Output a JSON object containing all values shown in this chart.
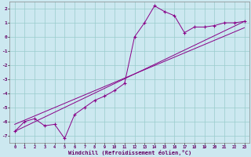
{
  "xlabel": "Windchill (Refroidissement éolien,°C)",
  "bg_color": "#cce8f0",
  "line_color": "#880088",
  "grid_color": "#99cccc",
  "x_min": -0.5,
  "x_max": 23.5,
  "y_min": -7.5,
  "y_max": 2.5,
  "yticks": [
    -7,
    -6,
    -5,
    -4,
    -3,
    -2,
    -1,
    0,
    1,
    2
  ],
  "xticks": [
    0,
    1,
    2,
    3,
    4,
    5,
    6,
    7,
    8,
    9,
    10,
    11,
    12,
    13,
    14,
    15,
    16,
    17,
    18,
    19,
    20,
    21,
    22,
    23
  ],
  "line1_x": [
    0,
    1,
    2,
    3,
    4,
    5,
    6,
    7,
    8,
    9,
    10,
    11,
    12,
    13,
    14,
    15,
    16,
    17,
    18,
    19,
    20,
    21,
    22,
    23
  ],
  "line1_y": [
    -6.7,
    -6.0,
    -5.8,
    -6.3,
    -6.2,
    -7.2,
    -5.5,
    -5.0,
    -4.5,
    -4.2,
    -3.8,
    -3.3,
    0.0,
    1.0,
    2.2,
    1.8,
    1.5,
    0.3,
    0.7,
    0.7,
    0.8,
    1.0,
    1.0,
    1.1
  ],
  "line2_x": [
    0,
    23
  ],
  "line2_y": [
    -6.7,
    1.1
  ],
  "line3_x": [
    0,
    23
  ],
  "line3_y": [
    -6.2,
    0.65
  ],
  "xlabel_color": "#660066",
  "tick_color": "#660066",
  "spine_color": "#888888"
}
